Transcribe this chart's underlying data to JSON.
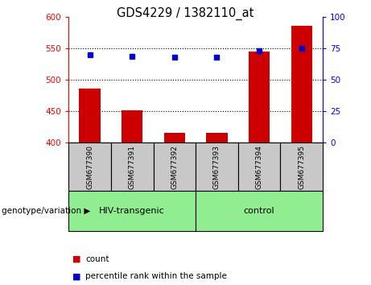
{
  "title": "GDS4229 / 1382110_at",
  "samples": [
    "GSM677390",
    "GSM677391",
    "GSM677392",
    "GSM677393",
    "GSM677394",
    "GSM677395"
  ],
  "counts": [
    486,
    452,
    415,
    416,
    545,
    586
  ],
  "percentile_ranks": [
    70,
    69,
    68,
    68,
    73,
    75
  ],
  "groups": [
    {
      "label": "HIV-transgenic",
      "color": "#90EE90",
      "start": 0,
      "end": 3
    },
    {
      "label": "control",
      "color": "#90EE90",
      "start": 3,
      "end": 6
    }
  ],
  "ylim_left": [
    400,
    600
  ],
  "ylim_right": [
    0,
    100
  ],
  "yticks_left": [
    400,
    450,
    500,
    550,
    600
  ],
  "yticks_right": [
    0,
    25,
    50,
    75,
    100
  ],
  "grid_yticks": [
    450,
    500,
    550
  ],
  "bar_color": "#CC0000",
  "dot_color": "#0000CC",
  "tick_area_color": "#C8C8C8",
  "legend_count_label": "count",
  "legend_percentile_label": "percentile rank within the sample",
  "genotype_label": "genotype/variation"
}
